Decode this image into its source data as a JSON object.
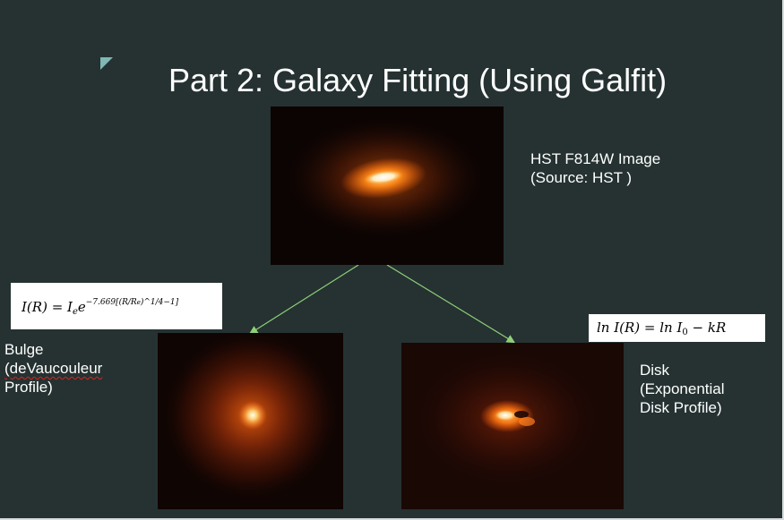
{
  "title": "Part 2: Galaxy Fitting (Using Galfit)",
  "hst_caption": {
    "line1": "HST F814W Image",
    "line2": "(Source: HST )"
  },
  "bulge": {
    "line1": "Bulge",
    "line2": "(deVaucouleur",
    "line3": "Profile)",
    "equation": {
      "lhs": "I(R) = I",
      "lhs_sub": "e",
      "base": "e",
      "exponent": "−7.669[(R/R",
      "exponent_sub": "e",
      "exponent_tail": ")^1/4−1]"
    }
  },
  "disk": {
    "line1": "Disk",
    "line2": "(Exponential",
    "line3": "Disk Profile)",
    "equation": {
      "part1": "ln I(R) = ln I",
      "sub": "0",
      "part2": " − kR"
    }
  },
  "colors": {
    "background": "#253231",
    "text": "#ffffff",
    "arrow": "#8fcf7a",
    "accent_triangle": "#7fb8b5",
    "galaxy_core": "#ffffff",
    "galaxy_glow": "#ff7a10",
    "spellcheck_underline": "#e02020"
  }
}
